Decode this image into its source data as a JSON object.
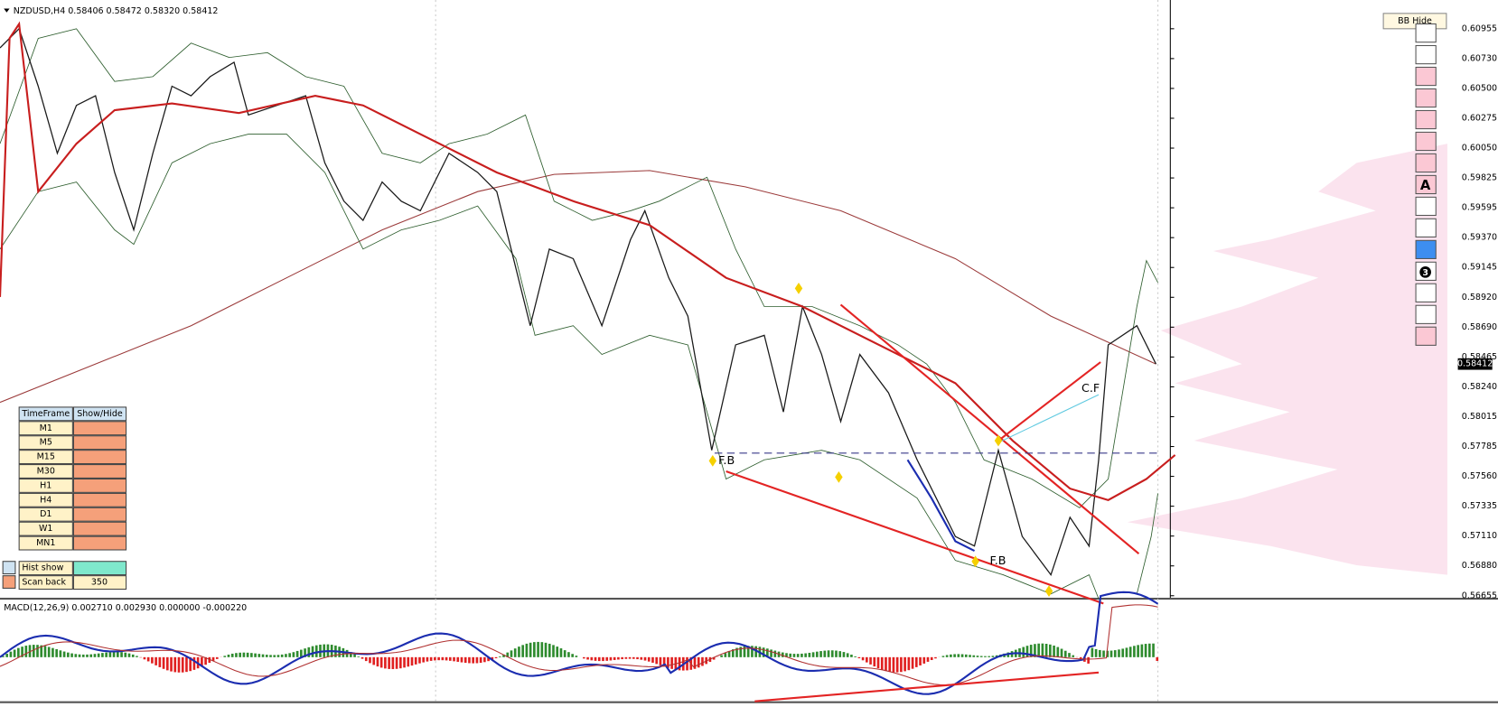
{
  "header": {
    "title": "NZDUSD,H4  0.58406 0.58472 0.58320 0.58412"
  },
  "price_axis": {
    "labels": [
      "0.60955",
      "0.60730",
      "0.60500",
      "0.60275",
      "0.60050",
      "0.59825",
      "0.59595",
      "0.59370",
      "0.59145",
      "0.58920",
      "0.58690",
      "0.58465",
      "0.58240",
      "0.58015",
      "0.57785",
      "0.57560",
      "0.57335",
      "0.57110",
      "0.56880",
      "0.56655"
    ],
    "current": "0.58412"
  },
  "bb_button": "BB Hide",
  "toolbar": {
    "text_tool": "A",
    "number_tool": "3"
  },
  "annotations": {
    "fb_left": "F.B",
    "fb_right": "F.B",
    "cf": "C.F"
  },
  "timeframe_panel": {
    "header": [
      "TimeFrame",
      "Show/Hide"
    ],
    "rows": [
      "M1",
      "M5",
      "M15",
      "M30",
      "H1",
      "H4",
      "D1",
      "W1",
      "MN1"
    ],
    "hist_show": "Hist show",
    "scan_back": "Scan back",
    "scan_back_value": "350"
  },
  "macd": {
    "label": "MACD(12,26,9) 0.002710 0.002930 0.000000 -0.000220"
  }
}
